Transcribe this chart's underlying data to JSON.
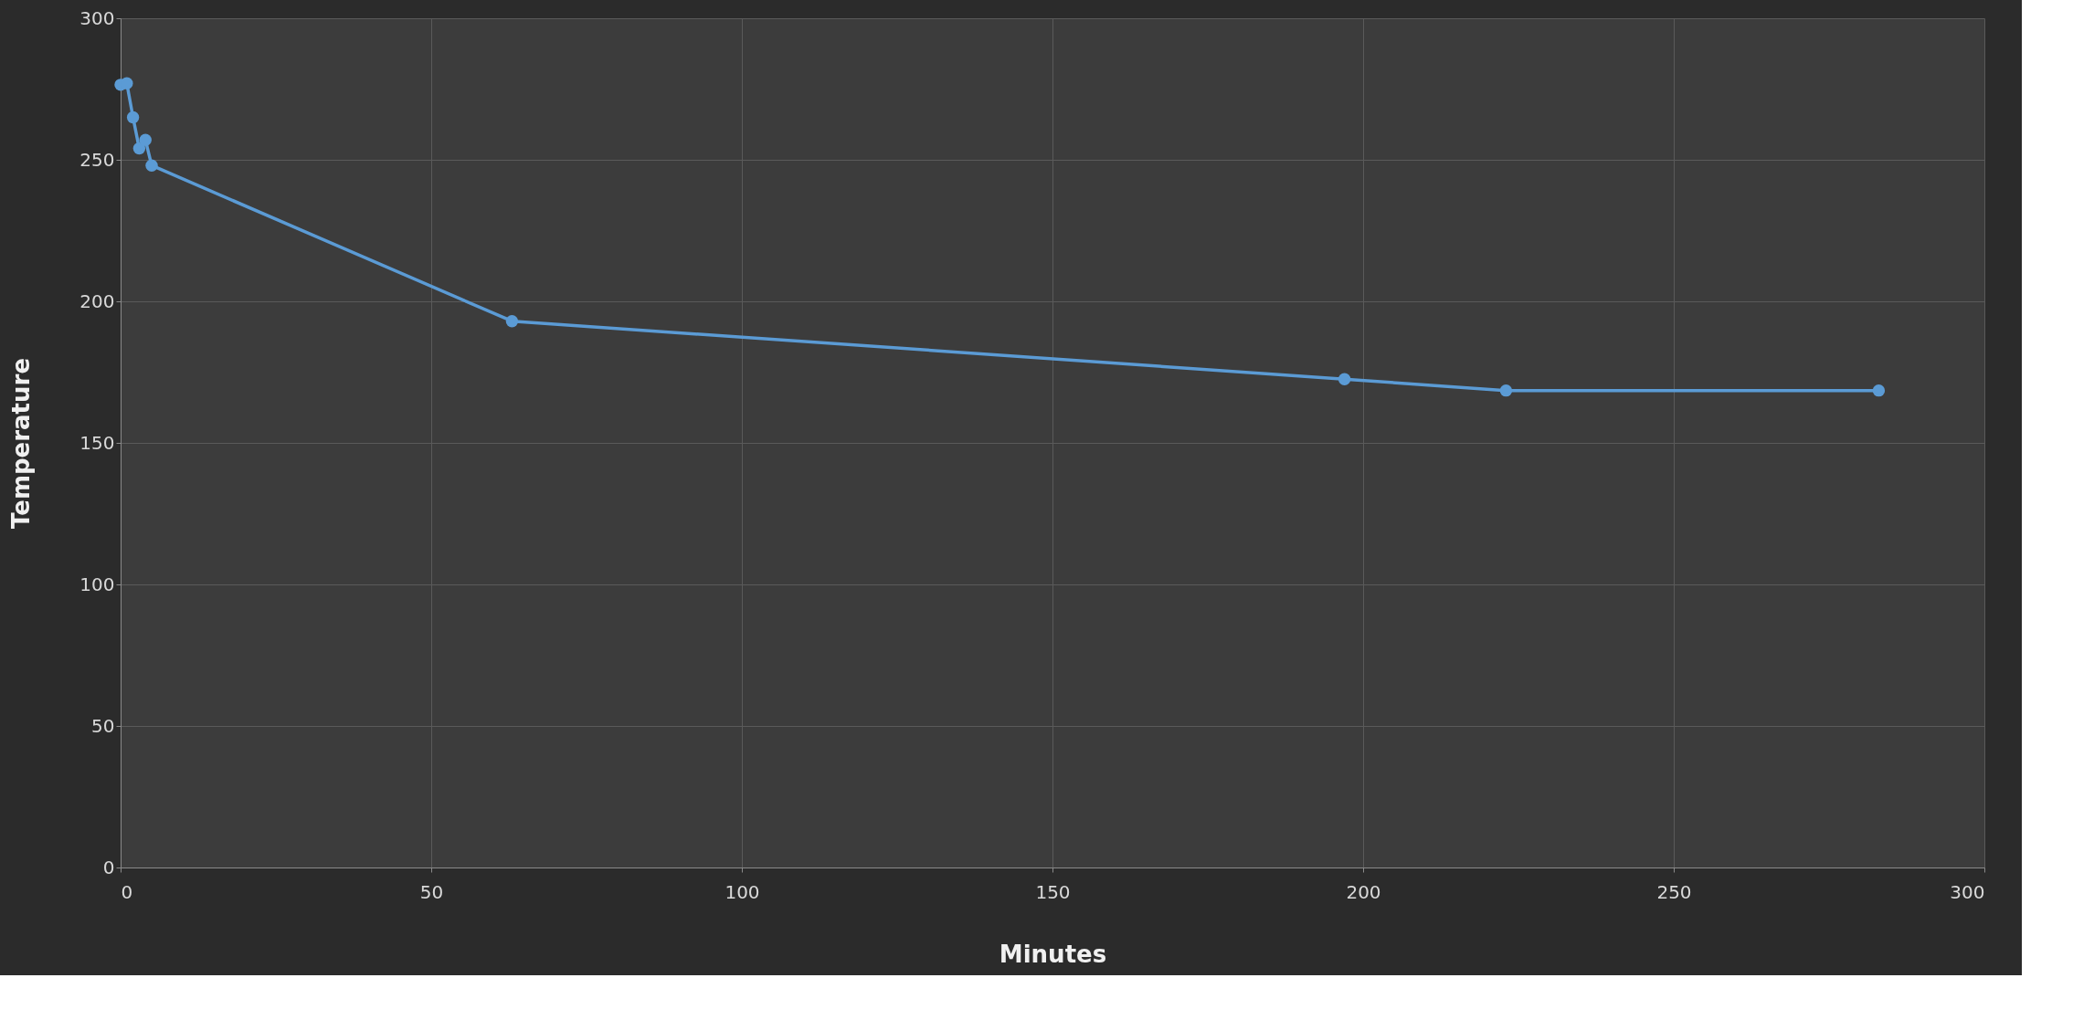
{
  "chart_data": {
    "type": "line",
    "xlabel": "Minutes",
    "ylabel": "Temperature",
    "x": [
      0,
      1,
      2,
      3,
      4,
      5,
      63,
      197,
      223,
      283
    ],
    "series": [
      {
        "color": "#5b9bd5",
        "values": [
          276.5,
          277,
          265,
          254,
          257,
          248,
          193,
          172.5,
          168.5,
          168.5
        ]
      }
    ],
    "xlim": [
      0,
      300
    ],
    "xticks": [
      0,
      50,
      100,
      150,
      200,
      250,
      300
    ],
    "ylim": [
      0,
      300
    ],
    "yticks": [
      0,
      50,
      100,
      150,
      200,
      250,
      300
    ],
    "grid": true,
    "marker": "circle",
    "line_style": "solid"
  }
}
